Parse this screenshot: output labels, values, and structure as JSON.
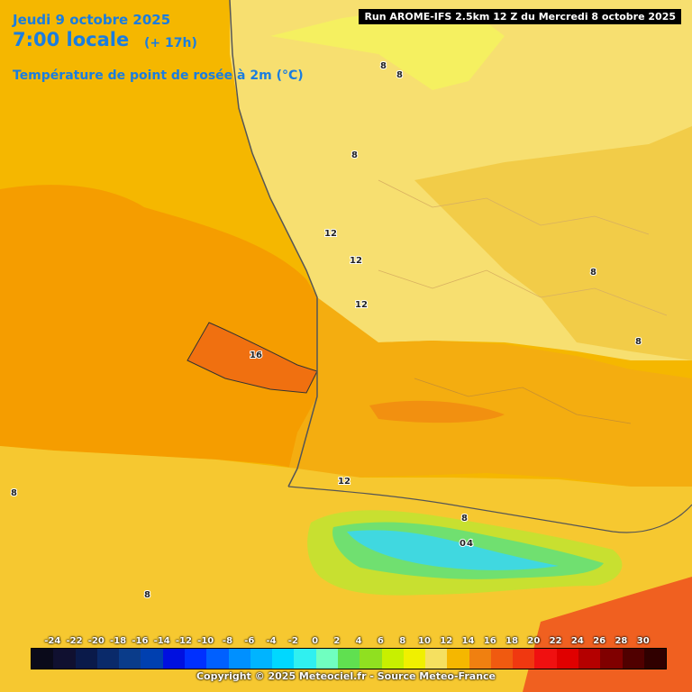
{
  "header": {
    "date": "Jeudi 9 octobre 2025",
    "time": "7:00 locale",
    "lead": "(+ 17h)",
    "parameter": "Température de point de rosée à 2m (°C)"
  },
  "run_info": "Run AROME-IFS 2.5km 12 Z du Mercredi 8 octobre 2025",
  "footer": "Copyright © 2025 Meteociel.fr - Source Meteo-France",
  "contour_labels": [
    "8",
    "8",
    "8",
    "8",
    "8",
    "12",
    "12",
    "12",
    "16",
    "12",
    "8",
    "0",
    "4",
    "8",
    "8"
  ],
  "legend": {
    "ticks": [
      "-24",
      "-22",
      "-20",
      "-18",
      "-16",
      "-14",
      "-12",
      "-10",
      "-8",
      "-6",
      "-4",
      "-2",
      "0",
      "2",
      "4",
      "6",
      "8",
      "10",
      "12",
      "14",
      "16",
      "18",
      "20",
      "22",
      "24",
      "26",
      "28",
      "30"
    ],
    "colors": [
      "#0a0a1a",
      "#101030",
      "#0a1a4a",
      "#0a2a6a",
      "#0a3c8a",
      "#0040b0",
      "#0010e0",
      "#0030ff",
      "#0060ff",
      "#0090ff",
      "#00b4ff",
      "#00d8ff",
      "#30f0f0",
      "#70ffc0",
      "#60e050",
      "#90e020",
      "#c8f000",
      "#f0f000",
      "#f5e060",
      "#f5b700",
      "#f08010",
      "#f05a10",
      "#f03810",
      "#f01010",
      "#e00000",
      "#b40000",
      "#800000",
      "#500000",
      "#300000"
    ]
  }
}
